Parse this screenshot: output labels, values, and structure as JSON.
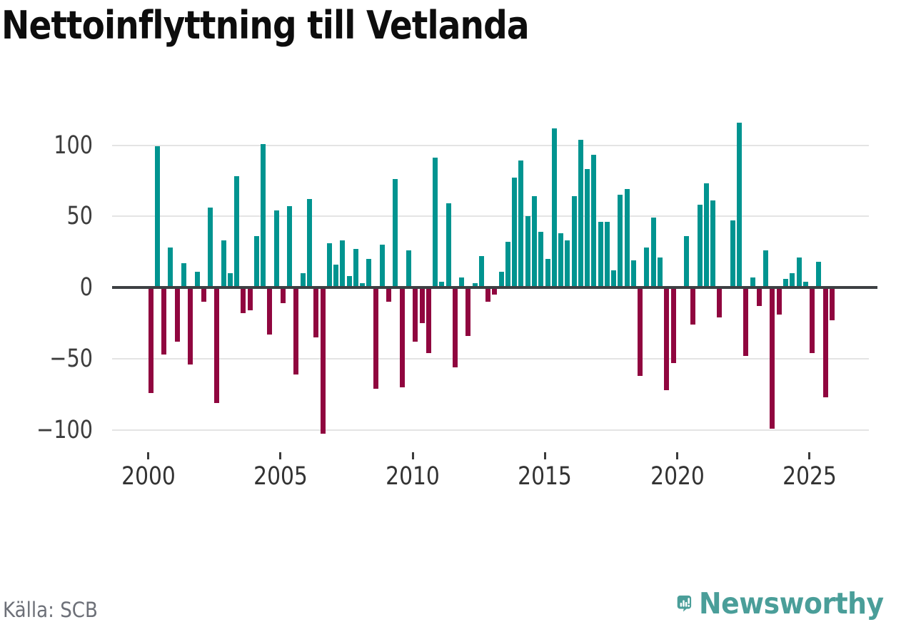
{
  "title": "Nettoinflyttning till Vetlanda",
  "source": "Källa: SCB",
  "branding": {
    "logo_text": "Newsworthy",
    "logo_color": "#4a9e99"
  },
  "colors": {
    "positive_bar": "#009490",
    "negative_bar": "#90063f",
    "zero_line": "#3d4043",
    "gridline": "#e4e4e4",
    "title_text": "#0d0d0d",
    "axis_text": "#3d3d3d",
    "source_text": "#6d7078"
  },
  "chart_data": {
    "type": "bar",
    "title": "Nettoinflyttning till Vetlanda",
    "frequency": "quarterly",
    "x_start": "2000Q1",
    "x_end": "2025Q4",
    "x": [
      "2000Q1",
      "2000Q2",
      "2000Q3",
      "2000Q4",
      "2001Q1",
      "2001Q2",
      "2001Q3",
      "2001Q4",
      "2002Q1",
      "2002Q2",
      "2002Q3",
      "2002Q4",
      "2003Q1",
      "2003Q2",
      "2003Q3",
      "2003Q4",
      "2004Q1",
      "2004Q2",
      "2004Q3",
      "2004Q4",
      "2005Q1",
      "2005Q2",
      "2005Q3",
      "2005Q4",
      "2006Q1",
      "2006Q2",
      "2006Q3",
      "2006Q4",
      "2007Q1",
      "2007Q2",
      "2007Q3",
      "2007Q4",
      "2008Q1",
      "2008Q2",
      "2008Q3",
      "2008Q4",
      "2009Q1",
      "2009Q2",
      "2009Q3",
      "2009Q4",
      "2010Q1",
      "2010Q2",
      "2010Q3",
      "2010Q4",
      "2011Q1",
      "2011Q2",
      "2011Q3",
      "2011Q4",
      "2012Q1",
      "2012Q2",
      "2012Q3",
      "2012Q4",
      "2013Q1",
      "2013Q2",
      "2013Q3",
      "2013Q4",
      "2014Q1",
      "2014Q2",
      "2014Q3",
      "2014Q4",
      "2015Q1",
      "2015Q2",
      "2015Q3",
      "2015Q4",
      "2016Q1",
      "2016Q2",
      "2016Q3",
      "2016Q4",
      "2017Q1",
      "2017Q2",
      "2017Q3",
      "2017Q4",
      "2018Q1",
      "2018Q2",
      "2018Q3",
      "2018Q4",
      "2019Q1",
      "2019Q2",
      "2019Q3",
      "2019Q4",
      "2020Q1",
      "2020Q2",
      "2020Q3",
      "2020Q4",
      "2021Q1",
      "2021Q2",
      "2021Q3",
      "2021Q4",
      "2022Q1",
      "2022Q2",
      "2022Q3",
      "2022Q4",
      "2023Q1",
      "2023Q2",
      "2023Q3",
      "2023Q4",
      "2024Q1",
      "2024Q2",
      "2024Q3",
      "2024Q4",
      "2025Q1",
      "2025Q2",
      "2025Q3",
      "2025Q4"
    ],
    "values": [
      -73,
      98,
      -46,
      27,
      -37,
      16,
      -53,
      10,
      -9,
      55,
      -80,
      32,
      9,
      77,
      -17,
      -15,
      35,
      100,
      -32,
      53,
      -10,
      56,
      -60,
      9,
      61,
      -34,
      -102,
      30,
      15,
      32,
      7,
      26,
      2,
      19,
      -70,
      29,
      -9,
      75,
      -69,
      25,
      -37,
      -24,
      -45,
      90,
      3,
      58,
      -55,
      6,
      -33,
      2,
      21,
      -9,
      -4,
      10,
      31,
      76,
      88,
      49,
      63,
      38,
      19,
      111,
      37,
      32,
      63,
      103,
      82,
      92,
      45,
      45,
      11,
      64,
      68,
      18,
      -61,
      27,
      48,
      20,
      -71,
      -52,
      0,
      35,
      -25,
      57,
      72,
      60,
      -20,
      0,
      46,
      115,
      -47,
      6,
      -12,
      25,
      -98,
      -18,
      5,
      9,
      20,
      3,
      -45,
      17,
      -76,
      -22
    ],
    "x_tick_labels": [
      "2000",
      "2005",
      "2010",
      "2015",
      "2020",
      "2025"
    ],
    "y_ticks": [
      100,
      50,
      0,
      -50,
      -100
    ],
    "ylim": [
      -119,
      119
    ],
    "grid": "horizontal",
    "legend": "none"
  }
}
